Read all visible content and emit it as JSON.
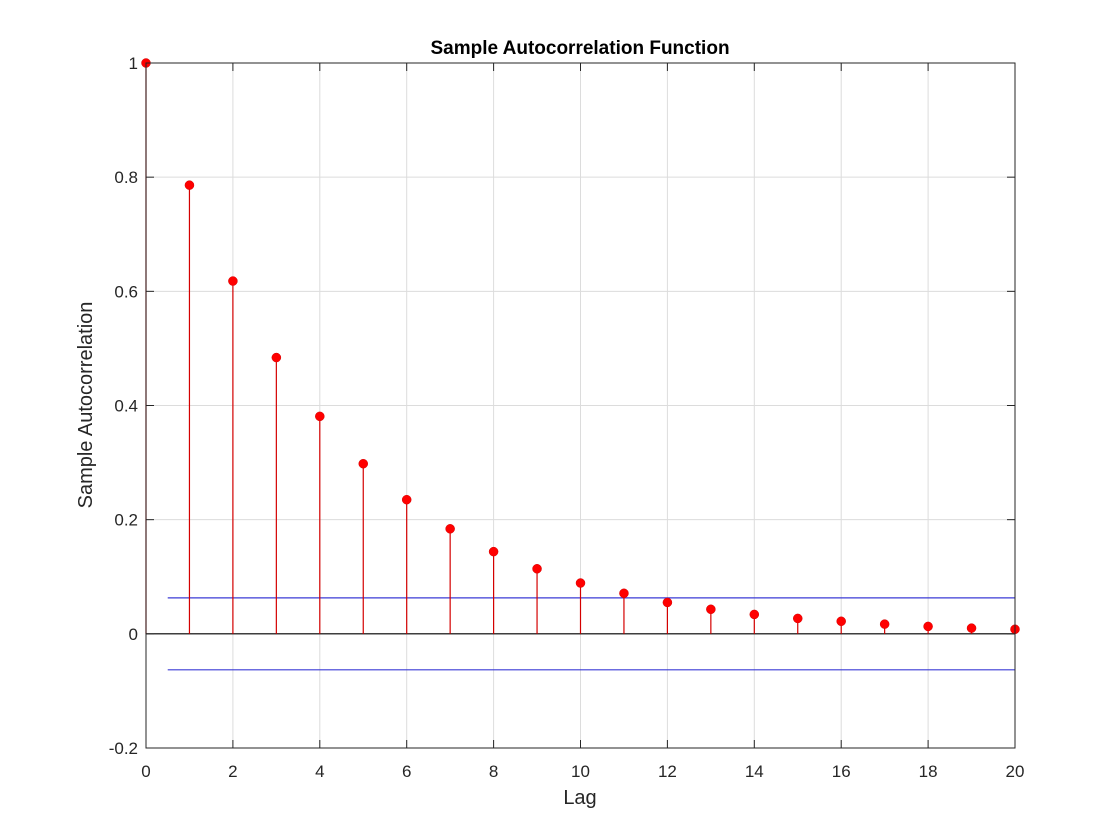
{
  "chart_data": {
    "type": "stem",
    "title": "Sample Autocorrelation Function",
    "xlabel": "Lag",
    "ylabel": "Sample Autocorrelation",
    "xlim": [
      0,
      20
    ],
    "ylim": [
      -0.2,
      1
    ],
    "xticks": [
      0,
      2,
      4,
      6,
      8,
      10,
      12,
      14,
      16,
      18,
      20
    ],
    "yticks": [
      -0.2,
      0,
      0.2,
      0.4,
      0.6,
      0.8,
      1
    ],
    "ytick_labels": [
      "-0.2",
      "0",
      "0.2",
      "0.4",
      "0.6",
      "0.8",
      "1"
    ],
    "grid": true,
    "lags": [
      0,
      1,
      2,
      3,
      4,
      5,
      6,
      7,
      8,
      9,
      10,
      11,
      12,
      13,
      14,
      15,
      16,
      17,
      18,
      19,
      20
    ],
    "acf": [
      1,
      0.786,
      0.618,
      0.484,
      0.381,
      0.298,
      0.235,
      0.184,
      0.144,
      0.114,
      0.089,
      0.071,
      0.055,
      0.043,
      0.034,
      0.027,
      0.022,
      0.017,
      0.013,
      0.01,
      0.008
    ],
    "confidence_bounds": {
      "upper": 0.063,
      "lower": -0.063,
      "x_range": [
        0.5,
        20
      ]
    },
    "colors": {
      "stem": "#d40000",
      "marker": "#ff0000",
      "bounds": "#3b3bd6",
      "grid": "#dcdcdc",
      "axis": "#262626",
      "zero": "#000000"
    }
  }
}
